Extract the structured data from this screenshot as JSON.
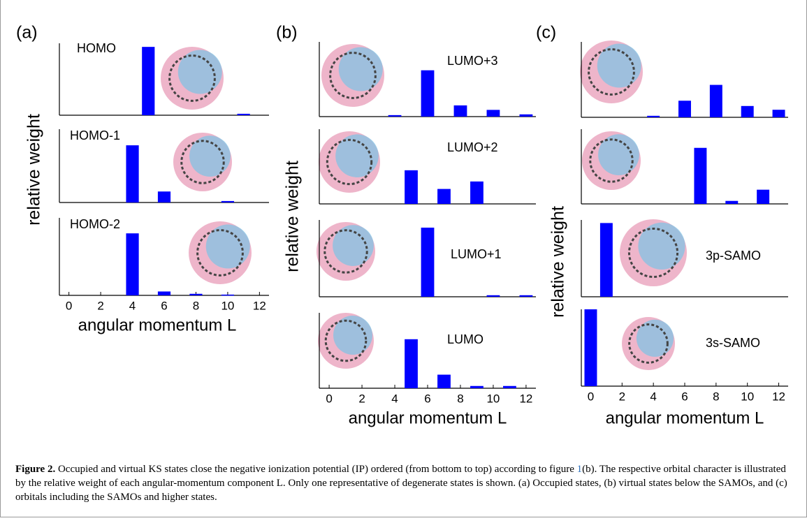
{
  "panels": [
    {
      "label": "(a)",
      "ylabel": "relative weight",
      "xlabel": "angular momentum L"
    },
    {
      "label": "(b)",
      "ylabel": "relative weight",
      "xlabel": "angular momentum L"
    },
    {
      "label": "(c)",
      "ylabel": "relative weight",
      "xlabel": "angular momentum L"
    }
  ],
  "chart_data": [
    {
      "type": "bar",
      "title": "HOMO",
      "x": [
        5,
        11
      ],
      "values": [
        0.95,
        0.02
      ],
      "xlim": [
        -0.6,
        12.6
      ],
      "ylim": [
        0,
        1
      ],
      "color": "#0000ff"
    },
    {
      "type": "bar",
      "title": "HOMO-1",
      "x": [
        4,
        6,
        10
      ],
      "values": [
        0.78,
        0.15,
        0.02
      ],
      "xlim": [
        -0.6,
        12.6
      ],
      "ylim": [
        0,
        1
      ],
      "color": "#0000ff"
    },
    {
      "type": "bar",
      "title": "HOMO-2",
      "x": [
        4,
        6,
        8,
        10
      ],
      "values": [
        0.8,
        0.05,
        0.02,
        0.01
      ],
      "xlim": [
        -0.6,
        12.6
      ],
      "ylim": [
        0,
        1
      ],
      "xticks": [
        0,
        2,
        4,
        6,
        8,
        10,
        12
      ],
      "color": "#0000ff"
    },
    {
      "type": "bar",
      "title": "LUMO+3",
      "x": [
        4,
        6,
        8,
        10,
        12
      ],
      "values": [
        0.02,
        0.62,
        0.15,
        0.09,
        0.03
      ],
      "xlim": [
        -0.6,
        12.6
      ],
      "ylim": [
        0,
        1
      ],
      "color": "#0000ff"
    },
    {
      "type": "bar",
      "title": "LUMO+2",
      "x": [
        5,
        7,
        9
      ],
      "values": [
        0.45,
        0.2,
        0.3
      ],
      "xlim": [
        -0.6,
        12.6
      ],
      "ylim": [
        0,
        1
      ],
      "color": "#0000ff"
    },
    {
      "type": "bar",
      "title": "LUMO+1",
      "x": [
        6,
        10,
        12
      ],
      "values": [
        0.9,
        0.02,
        0.02
      ],
      "xlim": [
        -0.6,
        12.6
      ],
      "ylim": [
        0,
        1
      ],
      "color": "#0000ff"
    },
    {
      "type": "bar",
      "title": "LUMO",
      "x": [
        5,
        7,
        9,
        11
      ],
      "values": [
        0.65,
        0.18,
        0.03,
        0.03
      ],
      "xlim": [
        -0.6,
        12.6
      ],
      "ylim": [
        0,
        1
      ],
      "xticks": [
        0,
        2,
        4,
        6,
        8,
        10,
        12
      ],
      "color": "#0000ff"
    },
    {
      "type": "bar",
      "x": [
        4,
        6,
        8,
        10,
        12
      ],
      "values": [
        0.02,
        0.22,
        0.43,
        0.15,
        0.1
      ],
      "xlim": [
        -0.6,
        12.6
      ],
      "ylim": [
        0,
        1
      ],
      "color": "#0000ff"
    },
    {
      "type": "bar",
      "x": [
        7,
        9,
        11
      ],
      "values": [
        0.75,
        0.04,
        0.19
      ],
      "xlim": [
        -0.6,
        12.6
      ],
      "ylim": [
        0,
        1
      ],
      "color": "#0000ff"
    },
    {
      "type": "bar",
      "title": "3p-SAMO",
      "x": [
        1
      ],
      "values": [
        0.96
      ],
      "xlim": [
        -0.6,
        12.6
      ],
      "ylim": [
        0,
        1
      ],
      "color": "#0000ff"
    },
    {
      "type": "bar",
      "title": "3s-SAMO",
      "x": [
        0
      ],
      "values": [
        1.0
      ],
      "xlim": [
        -0.6,
        12.6
      ],
      "ylim": [
        0,
        1
      ],
      "xticks": [
        0,
        2,
        4,
        6,
        8,
        10,
        12
      ],
      "color": "#0000ff"
    }
  ],
  "caption": {
    "label": "Figure 2.",
    "text1": "Occupied and virtual KS states close the negative ionization potential (IP) ordered (from bottom to top) according to figure ",
    "ref": "1",
    "text2": "(b). The respective orbital character is illustrated by the relative weight of each angular-momentum component L. Only one representative of degenerate states is shown. (a) Occupied states, (b) virtual states below the SAMOs, and (c) orbitals including the SAMOs and higher states."
  }
}
